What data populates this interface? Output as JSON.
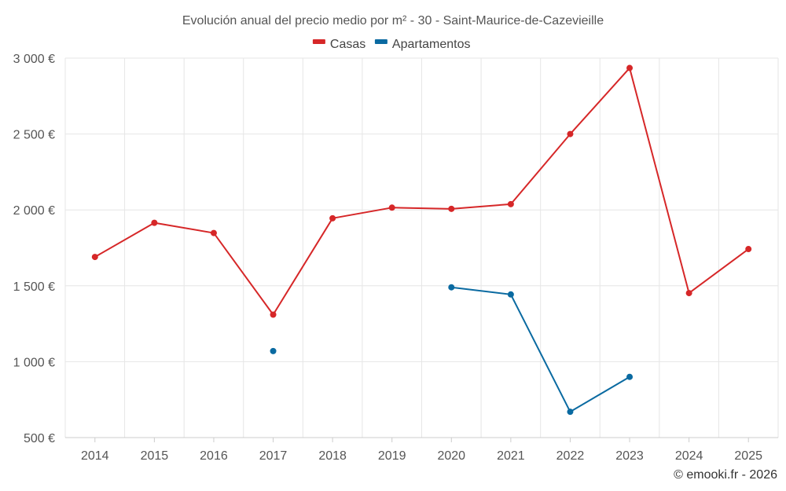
{
  "chart_data": {
    "type": "line",
    "title": "Evolución anual del precio medio por m² - 30 - Saint-Maurice-de-Cazevieille",
    "categories": [
      "2014",
      "2015",
      "2016",
      "2017",
      "2018",
      "2019",
      "2020",
      "2021",
      "2022",
      "2023",
      "2024",
      "2025"
    ],
    "series": [
      {
        "name": "Casas",
        "color": "#d62728",
        "values": [
          1690,
          1915,
          1848,
          1310,
          1945,
          2015,
          2007,
          2038,
          2500,
          2935,
          1452,
          1742
        ]
      },
      {
        "name": "Apartamentos",
        "color": "#0a6aa1",
        "values": [
          null,
          null,
          null,
          1070,
          null,
          null,
          1490,
          1443,
          670,
          900,
          null,
          null
        ]
      }
    ],
    "ylim": [
      500,
      3000
    ],
    "yticks": [
      500,
      1000,
      1500,
      2000,
      2500,
      3000
    ],
    "ytick_labels": [
      "500 €",
      "1 000 €",
      "1 500 €",
      "2 000 €",
      "2 500 €",
      "3 000 €"
    ],
    "xlabel": "",
    "ylabel": "",
    "grid": true,
    "legend_position": "top-center"
  },
  "credit": "© emooki.fr - 2026"
}
